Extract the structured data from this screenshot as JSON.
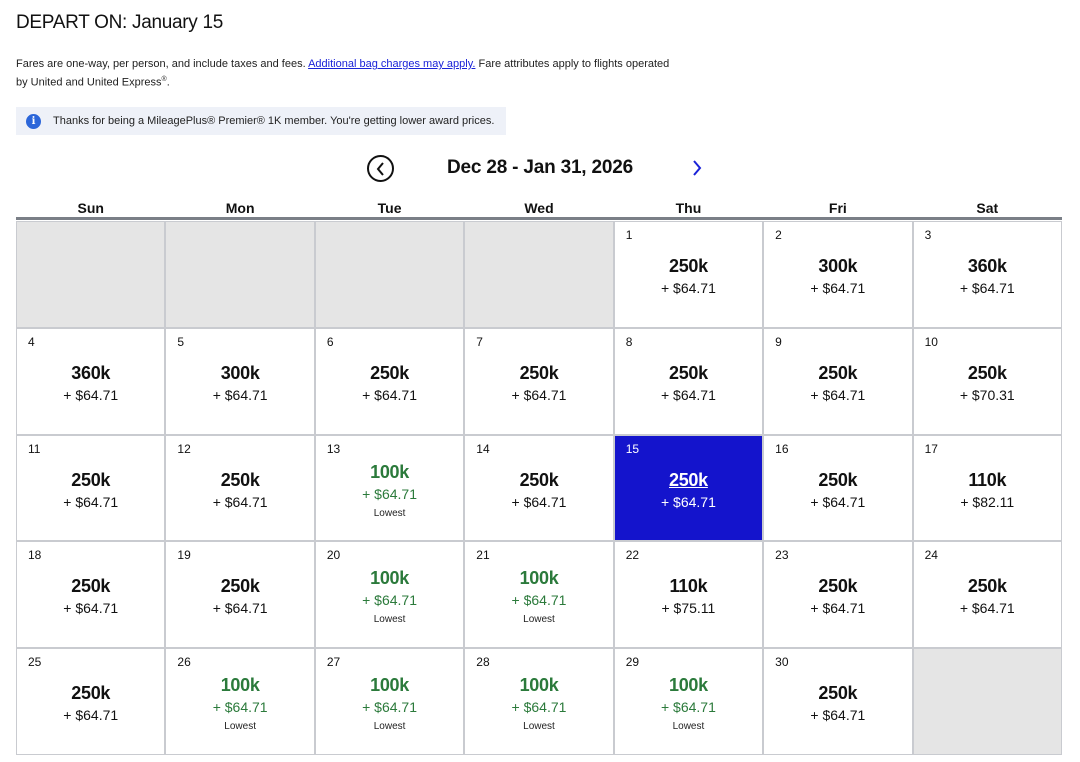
{
  "header": {
    "title": "DEPART ON: January 15",
    "disclaimer_pre": "Fares are one-way, per person, and include taxes and fees. ",
    "bag_link": "Additional bag charges may apply.",
    "disclaimer_post": " Fare attributes apply to flights operated by United and United Express",
    "disclaimer_mark": "®",
    "disclaimer_end": "."
  },
  "notice": {
    "icon": "info-icon",
    "text": "Thanks for being a MileagePlus® Premier® 1K member. You're getting lower award prices."
  },
  "nav": {
    "range_label": "Dec 28 - Jan 31, 2026",
    "prev_icon": "chevron-left-circle-icon",
    "next_icon": "chevron-right-icon"
  },
  "weekdays": [
    "Sun",
    "Mon",
    "Tue",
    "Wed",
    "Thu",
    "Fri",
    "Sat"
  ],
  "colors": {
    "selected": "#1414cc",
    "lowest": "#2b7a3b",
    "link": "#1a22d8",
    "empty": "#e5e5e5"
  },
  "days": [
    {
      "empty": true
    },
    {
      "empty": true
    },
    {
      "empty": true
    },
    {
      "empty": true
    },
    {
      "day": "1",
      "miles": "250k",
      "tax": "+ $64.71"
    },
    {
      "day": "2",
      "miles": "300k",
      "tax": "+ $64.71"
    },
    {
      "day": "3",
      "miles": "360k",
      "tax": "+ $64.71"
    },
    {
      "day": "4",
      "miles": "360k",
      "tax": "+ $64.71"
    },
    {
      "day": "5",
      "miles": "300k",
      "tax": "+ $64.71"
    },
    {
      "day": "6",
      "miles": "250k",
      "tax": "+ $64.71"
    },
    {
      "day": "7",
      "miles": "250k",
      "tax": "+ $64.71"
    },
    {
      "day": "8",
      "miles": "250k",
      "tax": "+ $64.71"
    },
    {
      "day": "9",
      "miles": "250k",
      "tax": "+ $64.71"
    },
    {
      "day": "10",
      "miles": "250k",
      "tax": "+ $70.31"
    },
    {
      "day": "11",
      "miles": "250k",
      "tax": "+ $64.71"
    },
    {
      "day": "12",
      "miles": "250k",
      "tax": "+ $64.71"
    },
    {
      "day": "13",
      "miles": "100k",
      "tax": "+ $64.71",
      "tag": "Lowest"
    },
    {
      "day": "14",
      "miles": "250k",
      "tax": "+ $64.71"
    },
    {
      "day": "15",
      "miles": "250k",
      "tax": "+ $64.71",
      "selected": true
    },
    {
      "day": "16",
      "miles": "250k",
      "tax": "+ $64.71"
    },
    {
      "day": "17",
      "miles": "110k",
      "tax": "+ $82.11"
    },
    {
      "day": "18",
      "miles": "250k",
      "tax": "+ $64.71"
    },
    {
      "day": "19",
      "miles": "250k",
      "tax": "+ $64.71"
    },
    {
      "day": "20",
      "miles": "100k",
      "tax": "+ $64.71",
      "tag": "Lowest"
    },
    {
      "day": "21",
      "miles": "100k",
      "tax": "+ $64.71",
      "tag": "Lowest"
    },
    {
      "day": "22",
      "miles": "110k",
      "tax": "+ $75.11"
    },
    {
      "day": "23",
      "miles": "250k",
      "tax": "+ $64.71"
    },
    {
      "day": "24",
      "miles": "250k",
      "tax": "+ $64.71"
    },
    {
      "day": "25",
      "miles": "250k",
      "tax": "+ $64.71"
    },
    {
      "day": "26",
      "miles": "100k",
      "tax": "+ $64.71",
      "tag": "Lowest"
    },
    {
      "day": "27",
      "miles": "100k",
      "tax": "+ $64.71",
      "tag": "Lowest"
    },
    {
      "day": "28",
      "miles": "100k",
      "tax": "+ $64.71",
      "tag": "Lowest"
    },
    {
      "day": "29",
      "miles": "100k",
      "tax": "+ $64.71",
      "tag": "Lowest"
    },
    {
      "day": "30",
      "miles": "250k",
      "tax": "+ $64.71"
    },
    {
      "empty": true
    }
  ]
}
